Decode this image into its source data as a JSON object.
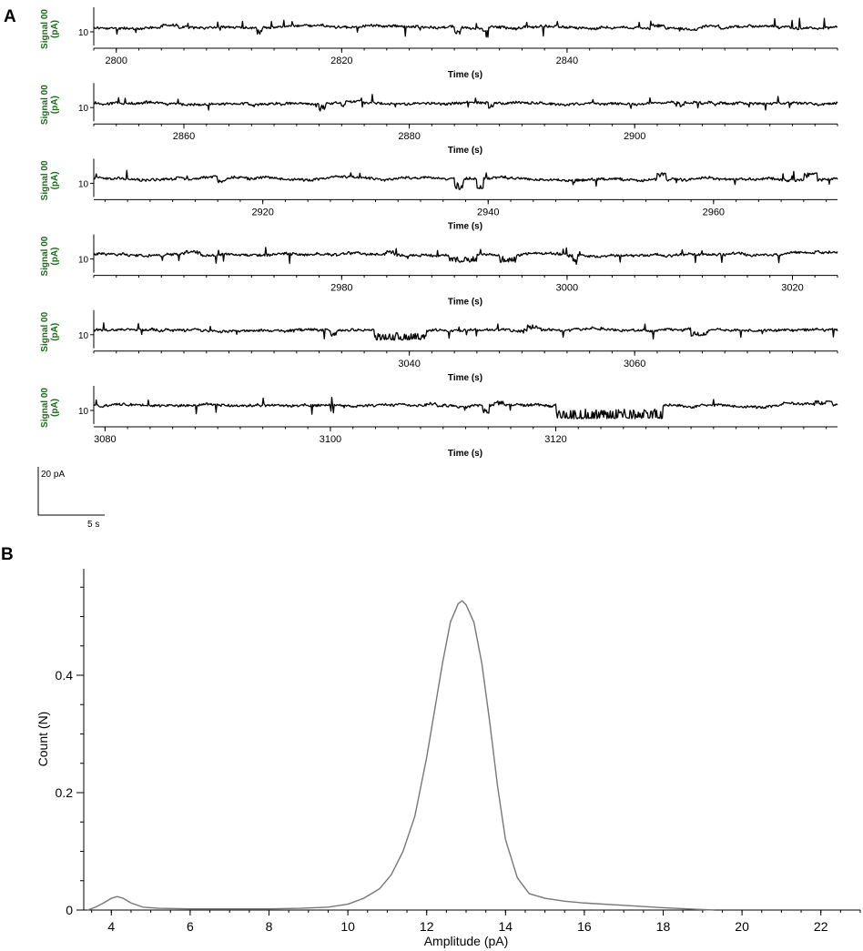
{
  "panels": {
    "a_label": "A",
    "b_label": "B"
  },
  "colors": {
    "trace": "#000000",
    "ylabel": "#1a6b1a",
    "histogram": "#777777"
  },
  "chart_data": [
    {
      "type": "line",
      "panel": "A",
      "kind": "current-trace-rows",
      "ylabel": "Signal 00 (pA)",
      "ytick": "10",
      "xlabel": "Time (s)",
      "rows": [
        {
          "xlim": [
            2798,
            2864
          ],
          "ticks": [
            2800,
            2820,
            2840
          ],
          "events": [
            {
              "t": 2804,
              "d": 1.5,
              "amp": 5
            },
            {
              "t": 2812.5,
              "d": 0.4,
              "amp": -14
            },
            {
              "t": 2830,
              "d": 0.6,
              "amp": -12
            },
            {
              "t": 2832.5,
              "d": 0.5,
              "amp": -18
            },
            {
              "t": 2847.5,
              "d": 1.2,
              "amp": 5
            },
            {
              "t": 2852,
              "d": 1.5,
              "amp": 4
            }
          ]
        },
        {
          "xlim": [
            2852,
            2918
          ],
          "ticks": [
            2860,
            2880,
            2900
          ],
          "events": [
            {
              "t": 2872,
              "d": 0.6,
              "amp": -14
            },
            {
              "t": 2874,
              "d": 0.3,
              "amp": -6
            },
            {
              "t": 2887,
              "d": 0.5,
              "amp": -9
            },
            {
              "t": 2904,
              "d": 0.4,
              "amp": -6
            },
            {
              "t": 2907,
              "d": 0.3,
              "amp": -5
            }
          ]
        },
        {
          "xlim": [
            2905,
            2971
          ],
          "ticks": [
            2920,
            2940,
            2960
          ],
          "events": [
            {
              "t": 2916,
              "d": 0.8,
              "amp": -6
            },
            {
              "t": 2937,
              "d": 0.8,
              "amp": -20
            },
            {
              "t": 2939,
              "d": 0.6,
              "amp": -20
            },
            {
              "t": 2947.5,
              "d": 0.2,
              "amp": -20
            },
            {
              "t": 2955,
              "d": 0.8,
              "amp": 10
            },
            {
              "t": 2968,
              "d": 1.2,
              "amp": 10
            }
          ]
        },
        {
          "xlim": [
            2958,
            3024
          ],
          "ticks": [
            2980,
            3000,
            3020
          ],
          "events": [
            {
              "t": 2966,
              "d": 1.5,
              "amp": 6
            },
            {
              "t": 2984,
              "d": 0.6,
              "amp": 6
            },
            {
              "t": 2989.5,
              "d": 2.5,
              "amp": -14
            },
            {
              "t": 2994,
              "d": 1.5,
              "amp": -14
            },
            {
              "t": 3000.5,
              "d": 0.4,
              "amp": -20
            }
          ]
        },
        {
          "xlim": [
            3012,
            3078
          ],
          "ticks": [
            3040,
            3060
          ],
          "events": [
            {
              "t": 3033,
              "d": 0.5,
              "amp": -10
            },
            {
              "t": 3037,
              "d": 4.5,
              "amp": -18
            },
            {
              "t": 3050.5,
              "d": 1.2,
              "amp": 9
            },
            {
              "t": 3065,
              "d": 1.5,
              "amp": -10
            }
          ]
        },
        {
          "xlim": [
            3079,
            3145
          ],
          "ticks": [
            3080,
            3100,
            3120
          ],
          "events": [
            {
              "t": 3108.5,
              "d": 1,
              "amp": 6
            },
            {
              "t": 3113.5,
              "d": 0.6,
              "amp": -14
            },
            {
              "t": 3114.5,
              "d": 0.8,
              "amp": 8
            },
            {
              "t": 3120,
              "d": 9.5,
              "amp": -24
            },
            {
              "t": 3140,
              "d": 1.2,
              "amp": 6
            },
            {
              "t": 3143,
              "d": 1.5,
              "amp": 9
            }
          ]
        }
      ],
      "scalebar": {
        "y_label": "20 pA",
        "x_label": "5 s"
      }
    },
    {
      "type": "line",
      "panel": "B",
      "xlabel": "Amplitude (pA)",
      "ylabel": "Count (N)",
      "xlim": [
        3.3,
        23
      ],
      "ylim": [
        0,
        0.58
      ],
      "xticks": [
        4,
        6,
        8,
        10,
        12,
        14,
        16,
        18,
        20,
        22
      ],
      "yticks": [
        0,
        0.2,
        0.4
      ],
      "ytick_labels": [
        "0",
        "0.2",
        "0.4"
      ],
      "x": [
        3.4,
        3.6,
        3.8,
        4.0,
        4.15,
        4.3,
        4.5,
        4.8,
        5.2,
        6.0,
        7.0,
        8.0,
        8.8,
        9.5,
        10.0,
        10.4,
        10.8,
        11.1,
        11.4,
        11.7,
        12.0,
        12.2,
        12.4,
        12.6,
        12.8,
        12.9,
        13.0,
        13.2,
        13.4,
        13.6,
        13.8,
        14.0,
        14.3,
        14.6,
        15.0,
        15.5,
        16.0,
        17.0,
        18.0,
        18.6,
        19.3
      ],
      "y": [
        0.0,
        0.005,
        0.012,
        0.02,
        0.023,
        0.02,
        0.012,
        0.005,
        0.003,
        0.002,
        0.002,
        0.002,
        0.003,
        0.005,
        0.01,
        0.02,
        0.036,
        0.06,
        0.1,
        0.16,
        0.26,
        0.34,
        0.42,
        0.49,
        0.522,
        0.527,
        0.52,
        0.49,
        0.42,
        0.32,
        0.21,
        0.12,
        0.055,
        0.028,
        0.02,
        0.015,
        0.012,
        0.008,
        0.004,
        0.002,
        0.0
      ]
    }
  ]
}
